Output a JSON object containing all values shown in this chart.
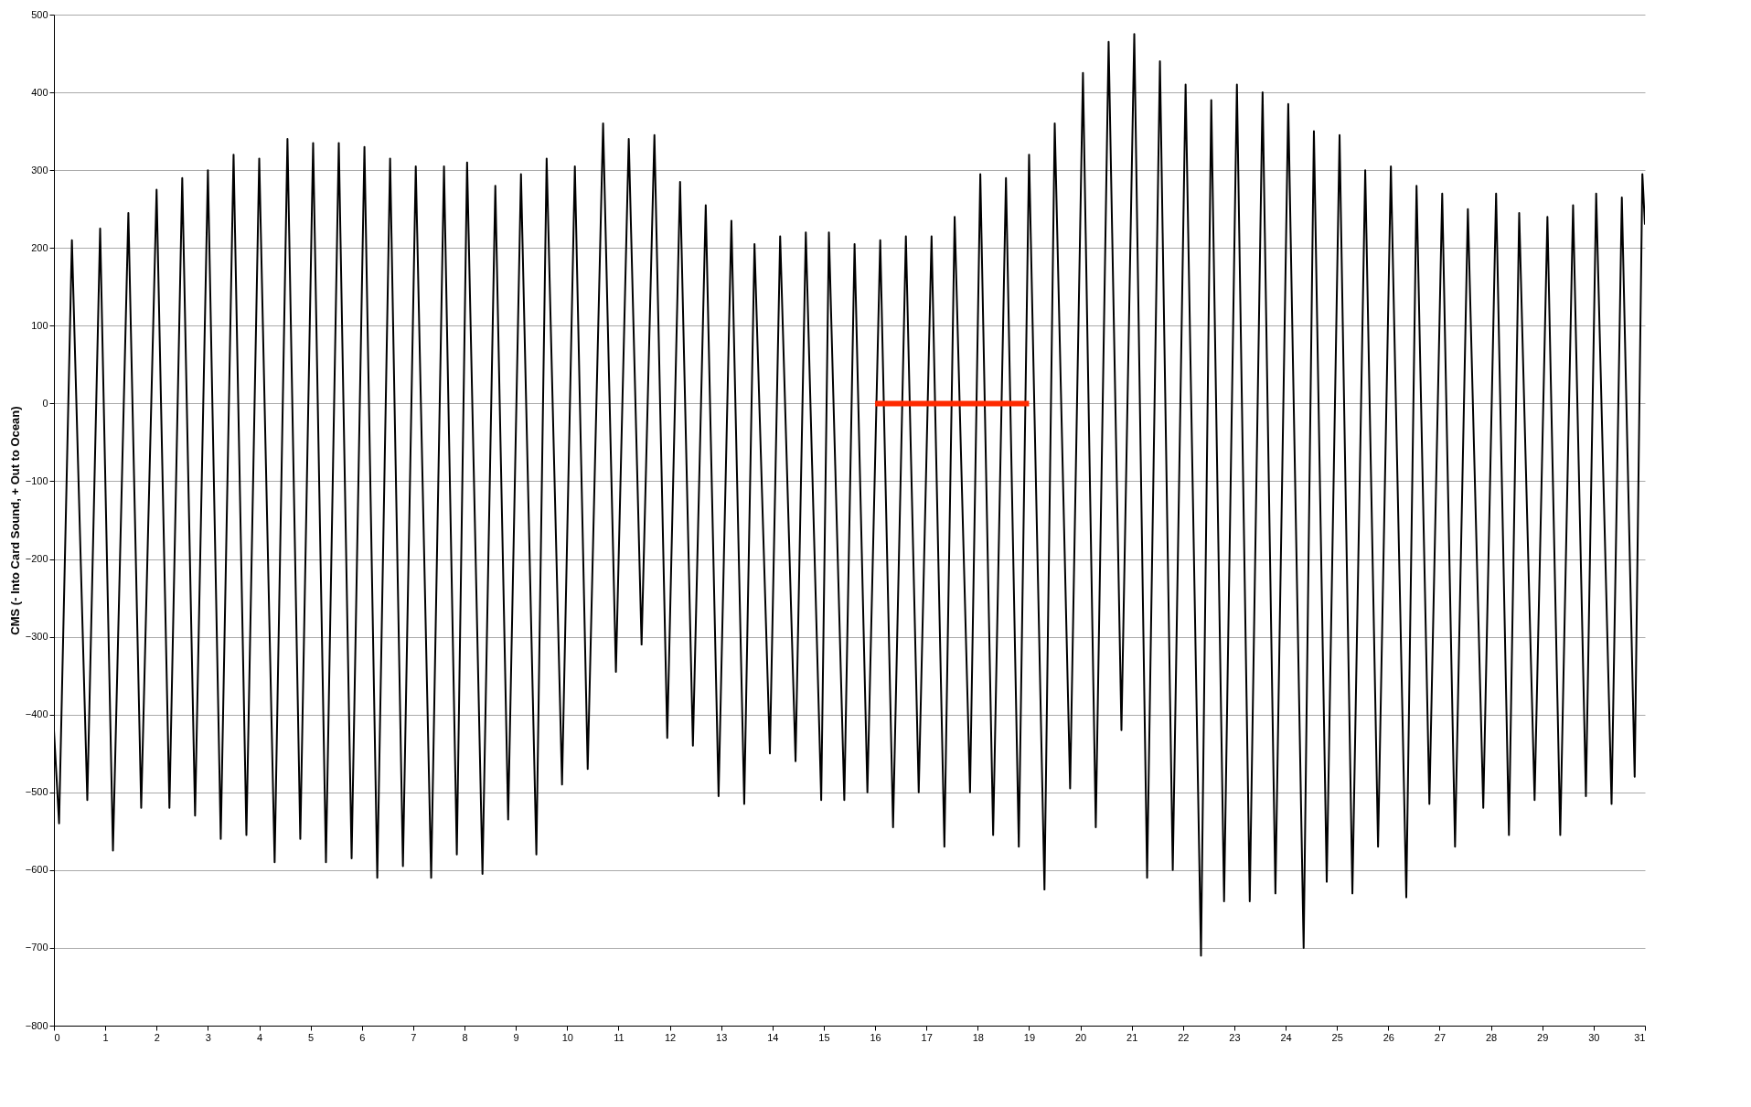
{
  "chart_data": {
    "type": "line",
    "ylabel": "CMS (- Into Card Sound, + Out to Ocean)",
    "xlim": [
      0,
      31
    ],
    "xticks": [
      0,
      1,
      2,
      3,
      4,
      5,
      6,
      7,
      8,
      9,
      10,
      11,
      12,
      13,
      14,
      15,
      16,
      17,
      18,
      19,
      20,
      21,
      22,
      23,
      24,
      25,
      26,
      27,
      28,
      29,
      30,
      31
    ],
    "ylim": [
      -800,
      500
    ],
    "yticks": [
      -800,
      -700,
      -600,
      -500,
      -400,
      -300,
      -200,
      -100,
      0,
      100,
      200,
      300,
      400,
      500
    ],
    "grid": "y",
    "series": [
      {
        "color": "#000000",
        "x": [
          0,
          0.1,
          0.35,
          0.65,
          0.9,
          1.15,
          1.45,
          1.7,
          2.0,
          2.25,
          2.5,
          2.75,
          3.0,
          3.25,
          3.5,
          3.75,
          4.0,
          4.3,
          4.55,
          4.8,
          5.05,
          5.3,
          5.55,
          5.8,
          6.05,
          6.3,
          6.55,
          6.8,
          7.05,
          7.35,
          7.6,
          7.85,
          8.05,
          8.35,
          8.6,
          8.85,
          9.1,
          9.4,
          9.6,
          9.9,
          10.15,
          10.4,
          10.7,
          10.95,
          11.2,
          11.45,
          11.7,
          11.95,
          12.2,
          12.45,
          12.7,
          12.95,
          13.2,
          13.45,
          13.65,
          13.95,
          14.15,
          14.45,
          14.65,
          14.95,
          15.1,
          15.4,
          15.6,
          15.85,
          16.1,
          16.35,
          16.6,
          16.85,
          17.1,
          17.35,
          17.55,
          17.85,
          18.05,
          18.3,
          18.55,
          18.8,
          19.0,
          19.3,
          19.5,
          19.8,
          20.05,
          20.3,
          20.55,
          20.8,
          21.05,
          21.3,
          21.55,
          21.8,
          22.05,
          22.35,
          22.55,
          22.8,
          23.05,
          23.3,
          23.55,
          23.8,
          24.05,
          24.35,
          24.55,
          24.8,
          25.05,
          25.3,
          25.55,
          25.8,
          26.05,
          26.35,
          26.55,
          26.8,
          27.05,
          27.3,
          27.55,
          27.85,
          28.1,
          28.35,
          28.55,
          28.85,
          29.1,
          29.35,
          29.6,
          29.85,
          30.05,
          30.35,
          30.55,
          30.8,
          30.95,
          31
        ],
        "values": [
          -420,
          -540,
          210,
          -510,
          225,
          -575,
          245,
          -520,
          275,
          -520,
          290,
          -530,
          300,
          -560,
          320,
          -555,
          315,
          -590,
          340,
          -560,
          335,
          -590,
          335,
          -585,
          330,
          -610,
          315,
          -595,
          305,
          -610,
          305,
          -580,
          310,
          -605,
          280,
          -535,
          295,
          -580,
          315,
          -490,
          305,
          -470,
          360,
          -345,
          340,
          -310,
          345,
          -430,
          285,
          -440,
          255,
          -505,
          235,
          -515,
          205,
          -450,
          215,
          -460,
          220,
          -510,
          220,
          -510,
          205,
          -500,
          210,
          -545,
          215,
          -500,
          215,
          -570,
          240,
          -500,
          295,
          -555,
          290,
          -570,
          320,
          -625,
          360,
          -495,
          425,
          -545,
          465,
          -420,
          475,
          -610,
          440,
          -600,
          410,
          -710,
          390,
          -640,
          410,
          -640,
          400,
          -630,
          385,
          -700,
          350,
          -615,
          345,
          -630,
          300,
          -570,
          305,
          -635,
          280,
          -515,
          270,
          -570,
          250,
          -520,
          270,
          -555,
          245,
          -510,
          240,
          -555,
          255,
          -505,
          270,
          -515,
          265,
          -480,
          295,
          230
        ]
      },
      {
        "color": "#ff2a00",
        "x": [
          16,
          19
        ],
        "values": [
          0,
          0
        ]
      }
    ]
  }
}
